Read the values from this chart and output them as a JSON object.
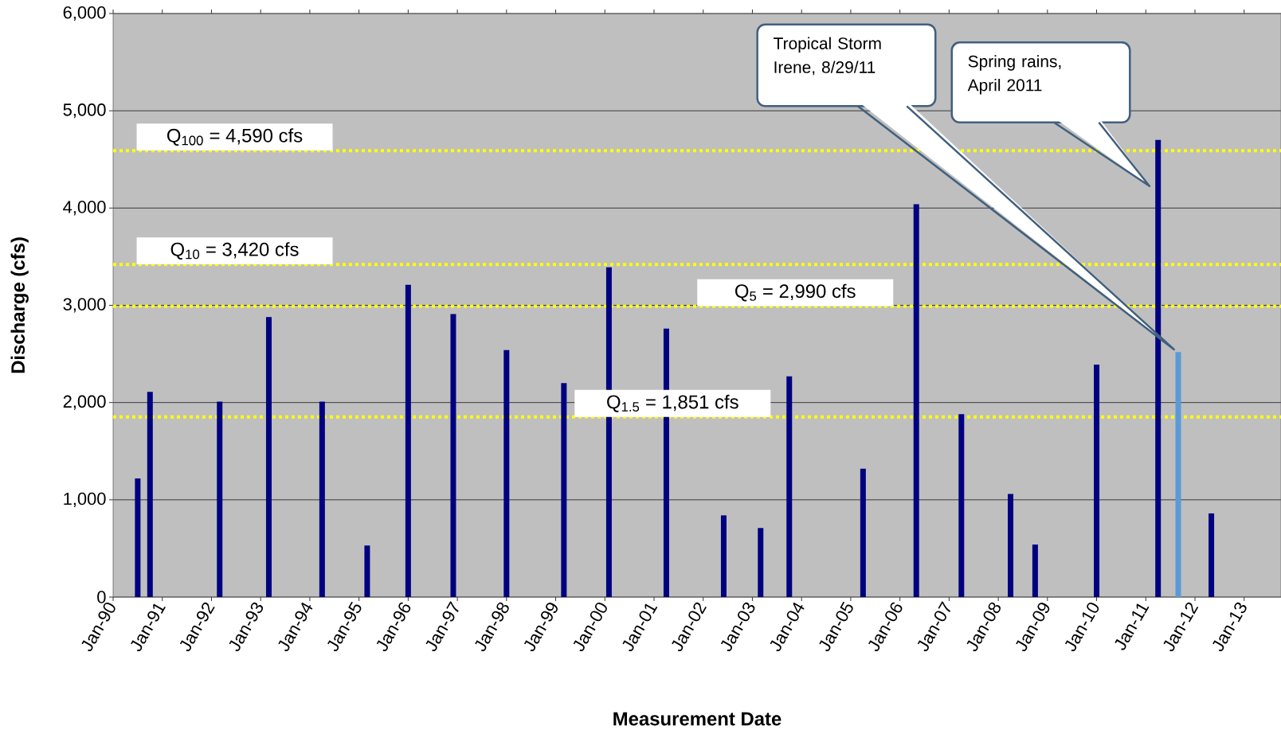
{
  "chart_data": {
    "type": "bar",
    "xlabel": "Measurement Date",
    "ylabel": "Discharge (cfs)",
    "x": [
      "1990-07",
      "1990-10",
      "1992-03",
      "1993-03",
      "1994-04",
      "1995-03",
      "1996-01",
      "1996-12",
      "1998-01",
      "1999-03",
      "2000-02",
      "2001-04",
      "2002-06",
      "2003-03",
      "2003-10",
      "2005-04",
      "2006-05",
      "2007-04",
      "2008-04",
      "2008-10",
      "2010-01",
      "2011-04",
      "2011-08-29",
      "2012-05"
    ],
    "values": [
      1220,
      2110,
      2010,
      2880,
      2010,
      530,
      3210,
      2910,
      2540,
      2200,
      3390,
      2760,
      840,
      710,
      2270,
      1320,
      4040,
      1880,
      1060,
      540,
      2390,
      4700,
      2520,
      860
    ],
    "colors": [
      "#000080",
      "#000080",
      "#000080",
      "#000080",
      "#000080",
      "#000080",
      "#000080",
      "#000080",
      "#000080",
      "#000080",
      "#000080",
      "#000080",
      "#000080",
      "#000080",
      "#000080",
      "#000080",
      "#000080",
      "#000080",
      "#000080",
      "#000080",
      "#000080",
      "#000080",
      "#5b9bd5",
      "#000080"
    ],
    "xlim": [
      "1990-01",
      "2013-10"
    ],
    "xticks": [
      {
        "value": "1990-01",
        "label": "Jan-90"
      },
      {
        "value": "1991-01",
        "label": "Jan-91"
      },
      {
        "value": "1992-01",
        "label": "Jan-92"
      },
      {
        "value": "1993-01",
        "label": "Jan-93"
      },
      {
        "value": "1994-01",
        "label": "Jan-94"
      },
      {
        "value": "1995-01",
        "label": "Jan-95"
      },
      {
        "value": "1996-01",
        "label": "Jan-96"
      },
      {
        "value": "1997-01",
        "label": "Jan-97"
      },
      {
        "value": "1998-01",
        "label": "Jan-98"
      },
      {
        "value": "1999-01",
        "label": "Jan-99"
      },
      {
        "value": "2000-01",
        "label": "Jan-00"
      },
      {
        "value": "2001-01",
        "label": "Jan-01"
      },
      {
        "value": "2002-01",
        "label": "Jan-02"
      },
      {
        "value": "2003-01",
        "label": "Jan-03"
      },
      {
        "value": "2004-01",
        "label": "Jan-04"
      },
      {
        "value": "2005-01",
        "label": "Jan-05"
      },
      {
        "value": "2006-01",
        "label": "Jan-06"
      },
      {
        "value": "2007-01",
        "label": "Jan-07"
      },
      {
        "value": "2008-01",
        "label": "Jan-08"
      },
      {
        "value": "2009-01",
        "label": "Jan-09"
      },
      {
        "value": "2010-01",
        "label": "Jan-10"
      },
      {
        "value": "2011-01",
        "label": "Jan-11"
      },
      {
        "value": "2012-01",
        "label": "Jan-12"
      },
      {
        "value": "2013-01",
        "label": "Jan-13"
      }
    ],
    "ylim": [
      0,
      6000
    ],
    "yticks": [
      0,
      {
        "value": 1000,
        "label": "1,000"
      },
      {
        "value": 2000,
        "label": "2,000"
      },
      {
        "value": 3000,
        "label": "3,000"
      },
      {
        "value": 4000,
        "label": "4,000"
      },
      {
        "value": 5000,
        "label": "5,000"
      },
      {
        "value": 6000,
        "label": "6,000"
      }
    ],
    "grid": "y",
    "ref_lines": [
      {
        "axis": "y",
        "value": 4590,
        "label": "Q$_{100}$ = 4,590 cfs",
        "color": "#ffff00",
        "line_style": "dotted"
      },
      {
        "axis": "y",
        "value": 3420,
        "label": "Q$_{10}$ = 3,420 cfs",
        "color": "#ffff00",
        "line_style": "dotted"
      },
      {
        "axis": "y",
        "value": 2990,
        "label": "Q$_{5}$ = 2,990 cfs",
        "color": "#ffff00",
        "line_style": "dotted"
      },
      {
        "axis": "y",
        "value": 1851,
        "label": "Q$_{1.5}$ = 1,851 cfs",
        "color": "#ffff00",
        "line_style": "dotted"
      }
    ],
    "annotations": [
      "Tropical Storm Irene, 8/29/11",
      "Spring rains, April 2011"
    ]
  }
}
